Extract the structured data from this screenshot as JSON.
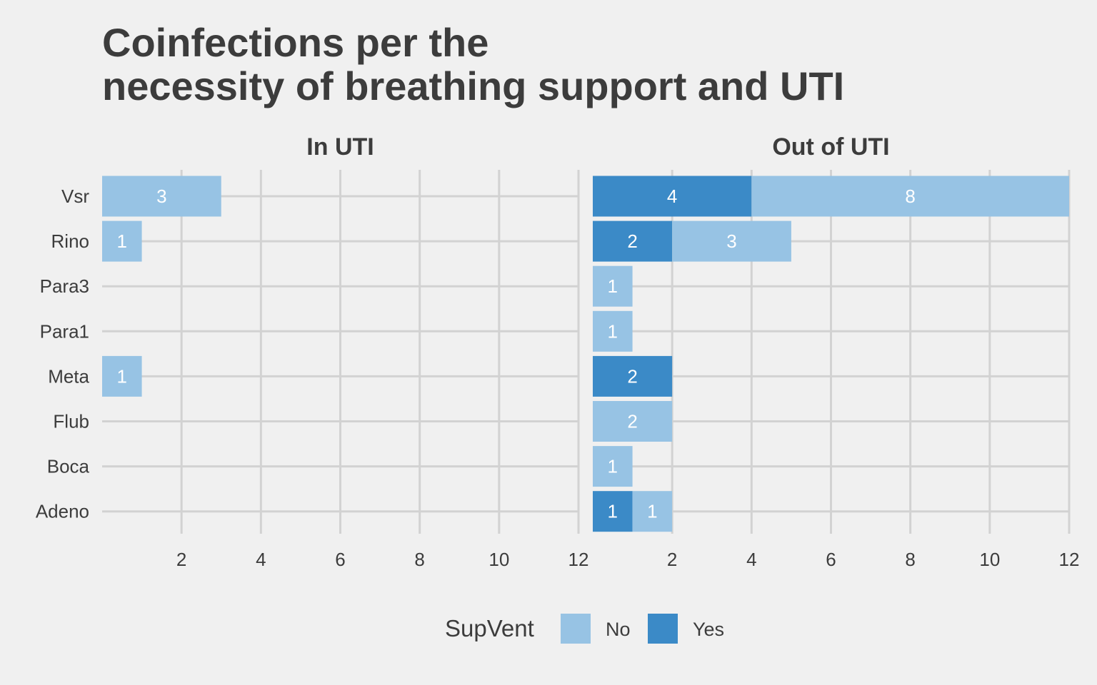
{
  "chart_data": {
    "type": "bar",
    "orientation": "horizontal",
    "stacked": true,
    "title_lines": [
      "Coinfections per the",
      "necessity of breathing support and UTI"
    ],
    "categories": [
      "Vsr",
      "Rino",
      "Para3",
      "Para1",
      "Meta",
      "Flub",
      "Boca",
      "Adeno"
    ],
    "legend": {
      "title": "SupVent",
      "position": "bottom",
      "entries": [
        {
          "label": "No",
          "color": "#97c3e4"
        },
        {
          "label": "Yes",
          "color": "#3b8ac7"
        }
      ]
    },
    "xlim": [
      0,
      12
    ],
    "xticks": [
      2,
      4,
      6,
      8,
      10,
      12
    ],
    "grid": true,
    "panels": [
      {
        "name": "In UTI",
        "series": [
          {
            "name": "Yes",
            "values": [
              0,
              0,
              0,
              0,
              0,
              0,
              0,
              0
            ]
          },
          {
            "name": "No",
            "values": [
              3,
              1,
              0,
              0,
              1,
              0,
              0,
              0
            ]
          }
        ]
      },
      {
        "name": "Out of UTI",
        "series": [
          {
            "name": "Yes",
            "values": [
              4,
              2,
              0,
              0,
              2,
              0,
              0,
              1
            ]
          },
          {
            "name": "No",
            "values": [
              8,
              3,
              1,
              1,
              0,
              2,
              1,
              1
            ]
          }
        ]
      }
    ]
  }
}
